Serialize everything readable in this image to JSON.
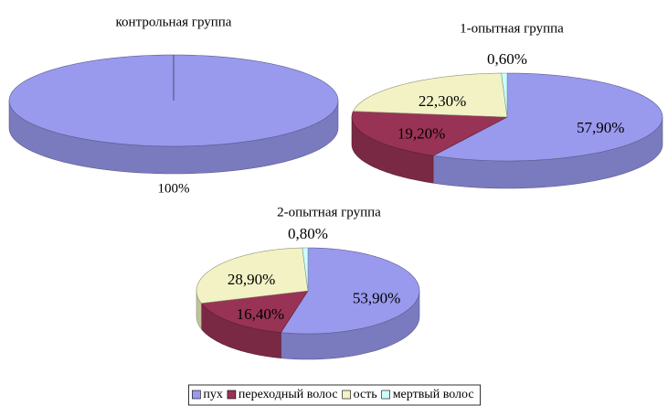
{
  "chart_data": [
    {
      "type": "pie",
      "title": "контрольная группа",
      "categories": [
        "пух"
      ],
      "values": [
        100
      ],
      "value_labels": [
        "100%"
      ],
      "colors": [
        "#9999ee"
      ]
    },
    {
      "type": "pie",
      "title": "1-опытная группа",
      "categories": [
        "пух",
        "переходный волос",
        "ость",
        "мертвый волос"
      ],
      "values": [
        57.9,
        19.2,
        22.3,
        0.6
      ],
      "value_labels": [
        "57,90%",
        "19,20%",
        "22,30%",
        "0,60%"
      ],
      "colors": [
        "#9999ee",
        "#993355",
        "#f2f2c4",
        "#ccffff"
      ]
    },
    {
      "type": "pie",
      "title": "2-опытная группа",
      "categories": [
        "пух",
        "переходный волос",
        "ость",
        "мертвый волос"
      ],
      "values": [
        53.9,
        16.4,
        28.9,
        0.8
      ],
      "value_labels": [
        "53,90%",
        "16,40%",
        "28,90%",
        "0,80%"
      ],
      "colors": [
        "#9999ee",
        "#993355",
        "#f2f2c4",
        "#ccffff"
      ]
    }
  ]
}
